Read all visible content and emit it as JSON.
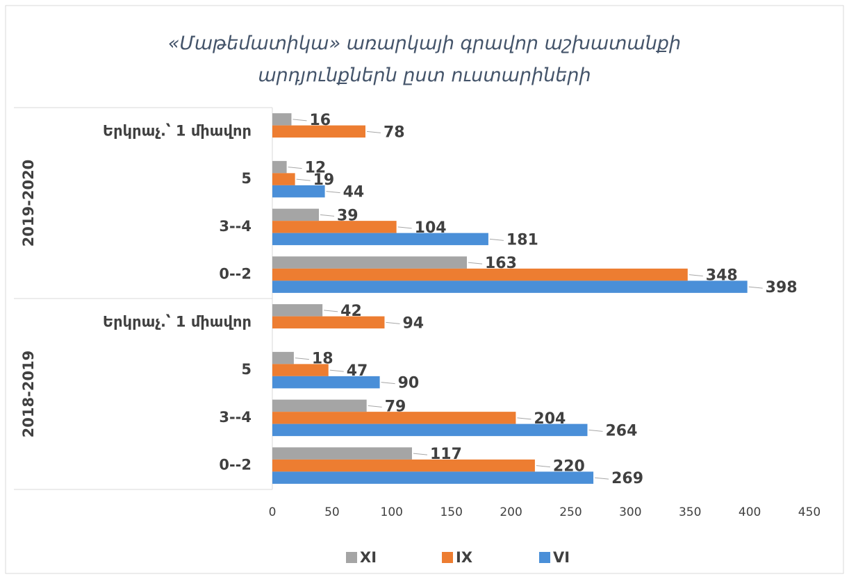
{
  "chart_data": {
    "type": "barh",
    "title": "«Մաթեմատիկա» առարկայի գրավոր աշխատանքի արդյունքներն ըստ ուստարիների",
    "group_labels": [
      "2018-2019",
      "2019-2020"
    ],
    "categories": [
      "0--2",
      "3--4",
      "5",
      "Երկրաչ.՝ 1 միավոր",
      "0--2",
      "3--4",
      "5",
      "Երկրաչ.՝ 1 միավոր"
    ],
    "series": [
      {
        "name": "XI",
        "color": "#a5a5a5",
        "values": [
          117,
          79,
          18,
          42,
          163,
          39,
          12,
          16
        ]
      },
      {
        "name": "IX",
        "color": "#ed7d31",
        "values": [
          220,
          204,
          47,
          94,
          348,
          104,
          19,
          78
        ]
      },
      {
        "name": "VI",
        "color": "#4a8fd8",
        "values": [
          269,
          264,
          90,
          null,
          398,
          181,
          44,
          null
        ]
      }
    ],
    "xlim": [
      0,
      450
    ],
    "xticks": [
      0,
      50,
      100,
      150,
      200,
      250,
      300,
      350,
      400,
      450
    ],
    "legend": "bottom"
  }
}
